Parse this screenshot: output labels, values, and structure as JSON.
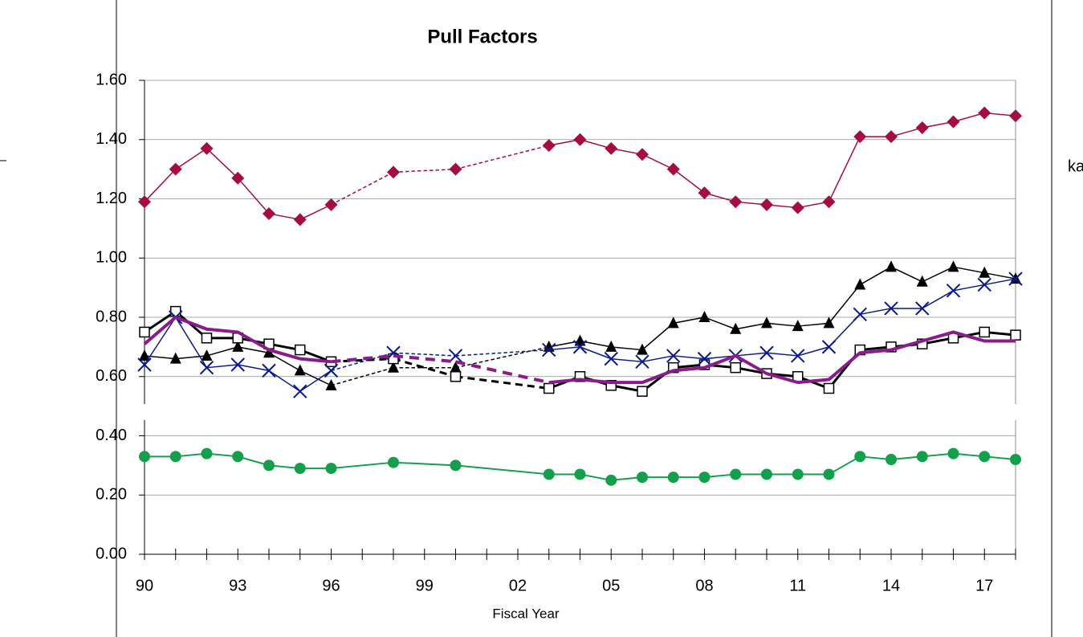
{
  "chart_data": {
    "type": "line",
    "title": "Pull Factors",
    "x_label": "Fiscal Year",
    "clipped_text": "ka",
    "categories": [
      "90",
      null,
      null,
      "93",
      null,
      null,
      "96",
      null,
      null,
      "99",
      null,
      null,
      "02",
      null,
      null,
      "05",
      null,
      null,
      "08",
      null,
      null,
      "11",
      null,
      null,
      "14",
      null,
      null,
      "17",
      null
    ],
    "ylim": [
      0,
      1.6
    ],
    "yticks": [
      {
        "value": 0,
        "label": "0.00"
      },
      {
        "value": 0.2,
        "label": "0.20"
      },
      {
        "value": 0.4,
        "label": "0.40"
      },
      {
        "value": 0.6,
        "label": "0.60"
      },
      {
        "value": 0.8,
        "label": "0.80"
      },
      {
        "value": 1.0,
        "label": "1.00"
      },
      {
        "value": 1.2,
        "label": "1.20"
      },
      {
        "value": 1.4,
        "label": "1.40"
      },
      {
        "value": 1.6,
        "label": "1.60"
      }
    ],
    "grid": true,
    "series": [
      {
        "color": "#a50d3e",
        "marker": "diamond",
        "width": 1.5,
        "gap_style": "dashed",
        "values": [
          1.19,
          1.3,
          1.37,
          1.27,
          1.15,
          1.13,
          1.18,
          null,
          1.29,
          null,
          1.3,
          null,
          null,
          1.38,
          1.4,
          1.37,
          1.35,
          1.3,
          1.22,
          1.19,
          1.18,
          1.17,
          1.19,
          1.41,
          1.41,
          1.44,
          1.46,
          1.49,
          1.48
        ]
      },
      {
        "color": "#000000",
        "marker": "triangle",
        "width": 1.5,
        "gap_style": "dashed",
        "values": [
          0.67,
          0.66,
          0.67,
          0.7,
          0.68,
          0.62,
          0.57,
          null,
          0.63,
          null,
          0.63,
          null,
          null,
          0.7,
          0.72,
          0.7,
          0.69,
          0.78,
          0.8,
          0.76,
          0.78,
          0.77,
          0.78,
          0.91,
          0.97,
          0.92,
          0.97,
          0.95,
          0.93
        ]
      },
      {
        "color": "#000000",
        "marker": "square",
        "width": 3,
        "gap_style": "dashed",
        "values": [
          0.75,
          0.82,
          0.73,
          0.73,
          0.71,
          0.69,
          0.65,
          null,
          0.66,
          null,
          0.6,
          null,
          null,
          0.56,
          0.6,
          0.57,
          0.55,
          0.63,
          0.64,
          0.63,
          0.61,
          0.6,
          0.56,
          0.69,
          0.7,
          0.71,
          0.73,
          0.75,
          0.74
        ]
      },
      {
        "color": "#0a1a8c",
        "marker": "x",
        "width": 1.5,
        "gap_style": "dashed",
        "values": [
          0.64,
          0.8,
          0.63,
          0.64,
          0.62,
          0.55,
          0.62,
          null,
          0.68,
          null,
          0.67,
          null,
          null,
          0.69,
          0.7,
          0.66,
          0.65,
          0.67,
          0.66,
          0.67,
          0.68,
          0.67,
          0.7,
          0.81,
          0.83,
          0.83,
          0.89,
          0.91,
          0.93
        ]
      },
      {
        "color": "#8b1a8b",
        "marker": "none",
        "width": 4,
        "gap_style": "dashed",
        "values": [
          0.71,
          0.8,
          0.76,
          0.75,
          0.69,
          0.66,
          0.65,
          null,
          0.67,
          null,
          0.65,
          null,
          null,
          0.58,
          0.59,
          0.58,
          0.58,
          0.62,
          0.63,
          0.67,
          0.61,
          0.58,
          0.59,
          0.68,
          0.69,
          0.72,
          0.75,
          0.72,
          0.72
        ]
      },
      {
        "color": "#139f4c",
        "marker": "circle",
        "width": 2,
        "gap_style": "solid",
        "values": [
          0.33,
          0.33,
          0.34,
          0.33,
          0.3,
          0.29,
          0.29,
          null,
          0.31,
          null,
          0.3,
          null,
          null,
          0.27,
          0.27,
          0.25,
          0.26,
          0.26,
          0.26,
          0.27,
          0.27,
          0.27,
          0.27,
          0.33,
          0.32,
          0.33,
          0.34,
          0.33,
          0.32
        ]
      }
    ]
  }
}
